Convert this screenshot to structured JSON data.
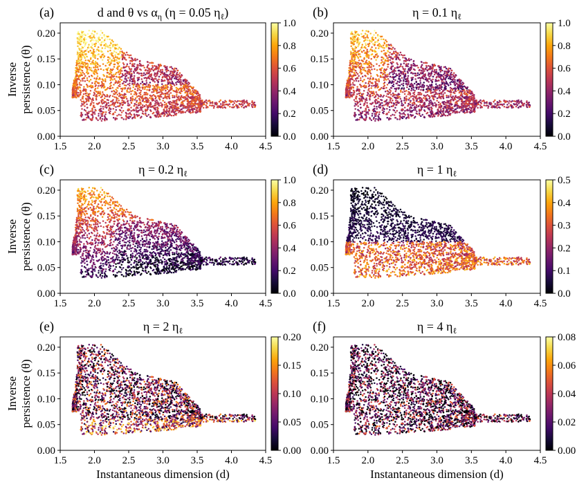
{
  "chart_data": [
    {
      "panel": "(a)",
      "type": "scatter",
      "title": "d and θ vs α",
      "title_sub": "η",
      "title_rest": " (η = 0.05 η",
      "title_rest_sub": "ℓ",
      "title_tail": ")",
      "xlabel": "",
      "ylabel": [
        "Inverse",
        "persistence (θ)"
      ],
      "xlim": [
        1.5,
        4.5
      ],
      "ylim": [
        0.0,
        0.22
      ],
      "xticks": [
        "1.5",
        "2.0",
        "2.5",
        "3.0",
        "3.5",
        "4.0",
        "4.5"
      ],
      "yticks": [
        "0.00",
        "0.05",
        "0.10",
        "0.15",
        "0.20"
      ],
      "colorbar": {
        "range": [
          0.0,
          1.0
        ],
        "ticks": [
          "0.0",
          "0.2",
          "0.4",
          "0.6",
          "0.8",
          "1.0"
        ],
        "colormap": "inferno"
      },
      "grid": false
    },
    {
      "panel": "(b)",
      "type": "scatter",
      "title": "η = 0.1 η",
      "title_sub": "ℓ",
      "xlabel": "",
      "ylabel": [],
      "xlim": [
        1.5,
        4.5
      ],
      "ylim": [
        0.0,
        0.22
      ],
      "xticks": [
        "1.5",
        "2.0",
        "2.5",
        "3.0",
        "3.5",
        "4.0",
        "4.5"
      ],
      "yticks": [
        "0.00",
        "0.05",
        "0.10",
        "0.15",
        "0.20"
      ],
      "colorbar": {
        "range": [
          0.0,
          1.0
        ],
        "ticks": [
          "0.0",
          "0.2",
          "0.4",
          "0.6",
          "0.8",
          "1.0"
        ],
        "colormap": "inferno"
      },
      "grid": false
    },
    {
      "panel": "(c)",
      "type": "scatter",
      "title": "η = 0.2 η",
      "title_sub": "ℓ",
      "xlabel": "",
      "ylabel": [
        "Inverse",
        "persistence (θ)"
      ],
      "xlim": [
        1.5,
        4.5
      ],
      "ylim": [
        0.0,
        0.22
      ],
      "xticks": [
        "1.5",
        "2.0",
        "2.5",
        "3.0",
        "3.5",
        "4.0",
        "4.5"
      ],
      "yticks": [
        "0.00",
        "0.05",
        "0.10",
        "0.15",
        "0.20"
      ],
      "colorbar": {
        "range": [
          0.0,
          1.0
        ],
        "ticks": [
          "0.0",
          "0.2",
          "0.4",
          "0.6",
          "0.8",
          "1.0"
        ],
        "colormap": "inferno"
      },
      "grid": false
    },
    {
      "panel": "(d)",
      "type": "scatter",
      "title": "η = 1 η",
      "title_sub": "ℓ",
      "xlabel": "",
      "ylabel": [],
      "xlim": [
        1.5,
        4.5
      ],
      "ylim": [
        0.0,
        0.22
      ],
      "xticks": [
        "1.5",
        "2.0",
        "2.5",
        "3.0",
        "3.5",
        "4.0",
        "4.5"
      ],
      "yticks": [
        "0.00",
        "0.05",
        "0.10",
        "0.15",
        "0.20"
      ],
      "colorbar": {
        "range": [
          0.0,
          0.5
        ],
        "ticks": [
          "0.0",
          "0.1",
          "0.2",
          "0.3",
          "0.4",
          "0.5"
        ],
        "colormap": "inferno"
      },
      "grid": false
    },
    {
      "panel": "(e)",
      "type": "scatter",
      "title": "η = 2 η",
      "title_sub": "ℓ",
      "xlabel": "Instantaneous dimension (d)",
      "ylabel": [
        "Inverse",
        "persistence (θ)"
      ],
      "xlim": [
        1.5,
        4.5
      ],
      "ylim": [
        0.0,
        0.22
      ],
      "xticks": [
        "1.5",
        "2.0",
        "2.5",
        "3.0",
        "3.5",
        "4.0",
        "4.5"
      ],
      "yticks": [
        "0.00",
        "0.05",
        "0.10",
        "0.15",
        "0.20"
      ],
      "colorbar": {
        "range": [
          0.0,
          0.2
        ],
        "ticks": [
          "0.00",
          "0.05",
          "0.10",
          "0.15",
          "0.20"
        ],
        "colormap": "inferno"
      },
      "grid": false
    },
    {
      "panel": "(f)",
      "type": "scatter",
      "title": "η = 4 η",
      "title_sub": "ℓ",
      "xlabel": "Instantaneous dimension (d)",
      "ylabel": [],
      "xlim": [
        1.5,
        4.5
      ],
      "ylim": [
        0.0,
        0.22
      ],
      "xticks": [
        "1.5",
        "2.0",
        "2.5",
        "3.0",
        "3.5",
        "4.0",
        "4.5"
      ],
      "yticks": [
        "0.00",
        "0.05",
        "0.10",
        "0.15",
        "0.20"
      ],
      "colorbar": {
        "range": [
          0.0,
          0.08
        ],
        "ticks": [
          "0.00",
          "0.02",
          "0.04",
          "0.06",
          "0.08"
        ],
        "colormap": "inferno"
      },
      "grid": false
    }
  ]
}
